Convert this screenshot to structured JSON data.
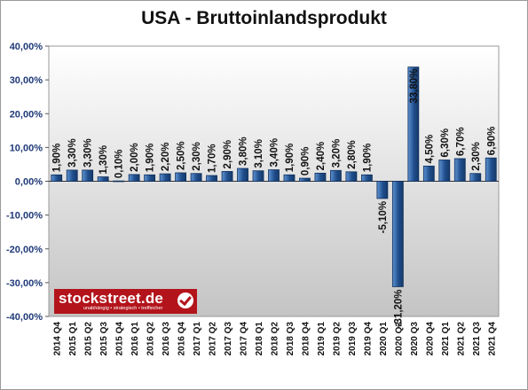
{
  "chart_data": {
    "type": "bar",
    "title": "USA - Bruttoinlandsprodukt",
    "xlabel": "",
    "ylabel": "",
    "ylim": [
      -40,
      40
    ],
    "ytick_values": [
      40,
      30,
      20,
      10,
      0,
      -10,
      -20,
      -30,
      -40
    ],
    "ytick_labels": [
      "40,00%",
      "30,00%",
      "20,00%",
      "10,00%",
      "0,00%",
      "-10,00%",
      "-20,00%",
      "-30,00%",
      "-40,00%"
    ],
    "grid": false,
    "legend": "none",
    "categories": [
      "2014 Q4",
      "2015 Q1",
      "2015 Q2",
      "2015 Q3",
      "2015 Q4",
      "2016 Q1",
      "2016 Q2",
      "2016 Q3",
      "2016 Q4",
      "2017 Q1",
      "2017 Q2",
      "2017 Q3",
      "2017 Q4",
      "2018 Q1",
      "2018 Q2",
      "2018 Q3",
      "2018 Q4",
      "2019 Q1",
      "2019 Q2",
      "2019 Q3",
      "2019 Q4",
      "2020 Q1",
      "2020 Q2",
      "2020 Q3",
      "2020 Q4",
      "2021 Q1",
      "2021 Q2",
      "2021 Q3",
      "2021 Q4"
    ],
    "values": [
      1.9,
      3.3,
      3.3,
      1.3,
      0.1,
      2.0,
      1.9,
      2.2,
      2.5,
      2.3,
      1.7,
      2.9,
      3.8,
      3.1,
      3.4,
      1.9,
      0.9,
      2.4,
      3.2,
      2.8,
      1.9,
      -5.1,
      -31.2,
      33.8,
      4.5,
      6.3,
      6.7,
      2.3,
      6.9
    ],
    "data_labels": [
      "1,90%",
      "3,30%",
      "3,30%",
      "1,30%",
      "0,10%",
      "2,00%",
      "1,90%",
      "2,20%",
      "2,50%",
      "2,30%",
      "1,70%",
      "2,90%",
      "3,80%",
      "3,10%",
      "3,40%",
      "1,90%",
      "0,90%",
      "2,40%",
      "3,20%",
      "2,80%",
      "1,90%",
      "-5,10%",
      "-31,20%",
      "33,80%",
      "4,50%",
      "6,30%",
      "6,70%",
      "2,30%",
      "6,90%"
    ],
    "colors": {
      "bar_fill": "#1f4e8c",
      "bar_light": "#5f93d2",
      "plot_top": "#ffffff",
      "plot_bottom": "#c4c4c4",
      "axis_text": "#1f3a78"
    }
  },
  "logo": {
    "name": "stockstreet.de",
    "tagline": "unabhängig • strategisch • treffsicher"
  }
}
